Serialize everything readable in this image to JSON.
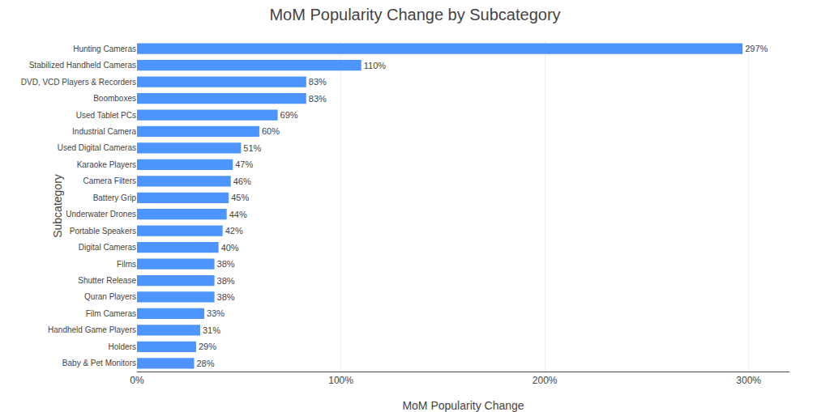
{
  "chart_data": {
    "type": "bar",
    "orientation": "horizontal",
    "title": "MoM Popularity Change by Subcategory",
    "xlabel": "MoM Popularity Change",
    "ylabel": "Subcategory",
    "categories": [
      "Baby & Pet Monitors",
      "Holders",
      "Handheld Game Players",
      "Film Cameras",
      "Quran Players",
      "Shutter Release",
      "Films",
      "Digital Cameras",
      "Portable Speakers",
      "Underwater Drones",
      "Battery Grip",
      "Camera Filters",
      "Karaoke Players",
      "Used Digital Cameras",
      "Industrial Camera",
      "Used Tablet PCs",
      "Boomboxes",
      "DVD, VCD Players & Recorders",
      "Stabilized Handheld Cameras",
      "Hunting Cameras"
    ],
    "values": [
      28,
      29,
      31,
      33,
      38,
      38,
      38,
      40,
      42,
      44,
      45,
      46,
      47,
      51,
      60,
      69,
      83,
      83,
      110,
      297
    ],
    "value_labels": [
      "28%",
      "29%",
      "31%",
      "33%",
      "38%",
      "38%",
      "38%",
      "40%",
      "42%",
      "44%",
      "45%",
      "46%",
      "47%",
      "51%",
      "60%",
      "69%",
      "83%",
      "83%",
      "110%",
      "297%"
    ],
    "data_labels": true,
    "color": "#4d94ff",
    "xlim": [
      0,
      320
    ],
    "xticks": [
      {
        "value": 0,
        "label": "0%"
      },
      {
        "value": 100,
        "label": "100%"
      },
      {
        "value": 200,
        "label": "200%"
      },
      {
        "value": 300,
        "label": "300%"
      }
    ],
    "grid": true
  }
}
